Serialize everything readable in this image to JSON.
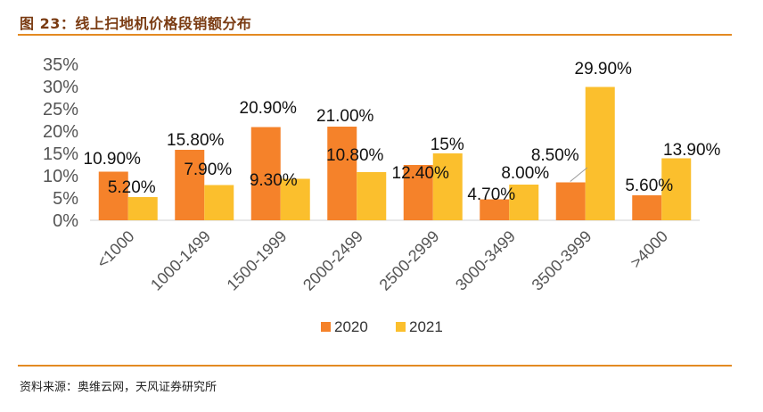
{
  "header": {
    "title": "图 23：线上扫地机价格段销额分布"
  },
  "footer": {
    "source": "资料来源：奥维云网，天风证券研究所"
  },
  "colors": {
    "s2020": "#F5822A",
    "s2021": "#FBBF2D",
    "rule": "#E38A22"
  },
  "chart_data": {
    "type": "bar",
    "title": "",
    "xlabel": "",
    "ylabel": "",
    "ylim": [
      0,
      0.35
    ],
    "yticks": [
      "0%",
      "5%",
      "10%",
      "15%",
      "20%",
      "25%",
      "30%",
      "35%"
    ],
    "grid": false,
    "legend_position": "bottom",
    "categories": [
      "<1000",
      "1000-1499",
      "1500-1999",
      "2000-2499",
      "2500-2999",
      "3000-3499",
      "3500-3999",
      ">4000"
    ],
    "series": [
      {
        "name": "2020",
        "values": [
          0.109,
          0.158,
          0.209,
          0.21,
          0.124,
          0.047,
          0.085,
          0.056
        ],
        "labels": [
          "10.90%",
          "15.80%",
          "20.90%",
          "21.00%",
          "12.40%",
          "4.70%",
          "8.50%",
          "5.60%"
        ]
      },
      {
        "name": "2021",
        "values": [
          0.052,
          0.079,
          0.093,
          0.108,
          0.15,
          0.08,
          0.299,
          0.139
        ],
        "labels": [
          "5.20%",
          "7.90%",
          "9.30%",
          "10.80%",
          "15%",
          "8.00%",
          "29.90%",
          "13.90%"
        ]
      }
    ]
  }
}
